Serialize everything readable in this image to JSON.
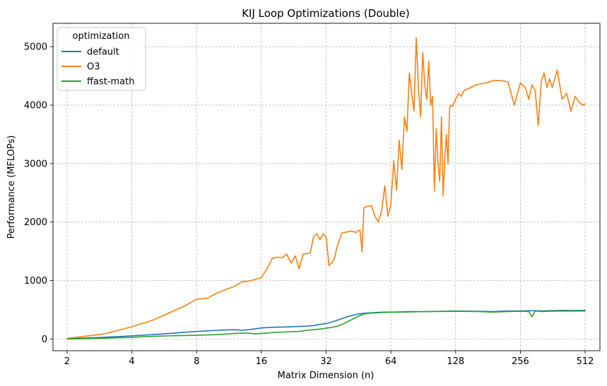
{
  "chart_data": {
    "type": "line",
    "title": "KIJ Loop Optimizations (Double)",
    "xlabel": "Matrix Dimension (n)",
    "ylabel": "Performance (MFLOPs)",
    "xscale": "log2",
    "xlim": [
      1.72,
      600
    ],
    "ylim": [
      -200,
      5400
    ],
    "xticks": [
      2,
      4,
      8,
      16,
      32,
      64,
      128,
      256,
      512
    ],
    "xtick_labels": [
      "2",
      "4",
      "8",
      "16",
      "32",
      "64",
      "128",
      "256",
      "512"
    ],
    "yticks": [
      0,
      1000,
      2000,
      3000,
      4000,
      5000
    ],
    "ytick_labels": [
      "0",
      "1000",
      "2000",
      "3000",
      "4000",
      "5000"
    ],
    "grid": true,
    "legend": {
      "title": "optimization",
      "placement": "top-left"
    },
    "series": [
      {
        "name": "default",
        "color": "#1f77b4",
        "x": [
          2,
          3,
          4,
          5,
          6,
          7,
          8,
          9,
          10,
          11,
          12,
          13,
          14,
          15,
          16,
          18,
          20,
          22,
          24,
          26,
          28,
          30,
          32,
          34,
          36,
          38,
          40,
          42,
          44,
          46,
          48,
          52,
          56,
          60,
          64,
          72,
          80,
          96,
          112,
          128,
          160,
          192,
          224,
          256,
          300,
          320,
          350,
          400,
          450,
          512
        ],
        "y": [
          5,
          30,
          55,
          75,
          95,
          115,
          130,
          140,
          150,
          155,
          160,
          150,
          160,
          175,
          190,
          200,
          205,
          210,
          215,
          220,
          230,
          250,
          265,
          290,
          320,
          350,
          380,
          400,
          420,
          430,
          440,
          450,
          455,
          460,
          460,
          465,
          470,
          470,
          475,
          478,
          475,
          470,
          480,
          480,
          485,
          480,
          485,
          490,
          488,
          490
        ]
      },
      {
        "name": "O3",
        "color": "#ff7f0e",
        "x": [
          2,
          3,
          4,
          5,
          6,
          7,
          8,
          9,
          10,
          11,
          12,
          13,
          14,
          15,
          16,
          17,
          18,
          19,
          20,
          21,
          22,
          23,
          24,
          25,
          26,
          27,
          28,
          29,
          30,
          31,
          32,
          33,
          34,
          35,
          36,
          38,
          40,
          42,
          44,
          45,
          46,
          47,
          48,
          50,
          52,
          54,
          56,
          58,
          60,
          62,
          64,
          66,
          68,
          70,
          72,
          74,
          76,
          78,
          80,
          82,
          84,
          86,
          88,
          90,
          92,
          94,
          96,
          98,
          100,
          102,
          104,
          106,
          108,
          110,
          112,
          114,
          116,
          118,
          120,
          122,
          124,
          126,
          128,
          132,
          136,
          140,
          150,
          160,
          176,
          192,
          208,
          224,
          240,
          256,
          270,
          280,
          290,
          300,
          310,
          320,
          330,
          340,
          350,
          360,
          380,
          400,
          420,
          440,
          460,
          480,
          500,
          512
        ],
        "y": [
          10,
          90,
          210,
          320,
          450,
          560,
          680,
          700,
          790,
          850,
          900,
          980,
          990,
          1020,
          1050,
          1200,
          1380,
          1400,
          1390,
          1450,
          1300,
          1420,
          1200,
          1450,
          1460,
          1470,
          1750,
          1800,
          1700,
          1800,
          1750,
          1260,
          1300,
          1380,
          1580,
          1820,
          1830,
          1850,
          1820,
          1850,
          1860,
          1490,
          2250,
          2270,
          2280,
          2100,
          2000,
          2200,
          2620,
          2100,
          2300,
          3050,
          2550,
          3400,
          2900,
          3800,
          3550,
          4550,
          4200,
          3900,
          5150,
          4300,
          3800,
          4900,
          4350,
          4100,
          4750,
          4000,
          4150,
          2530,
          3600,
          3000,
          2700,
          3800,
          2450,
          3100,
          3500,
          3000,
          3950,
          4000,
          3980,
          4050,
          4100,
          4200,
          4150,
          4250,
          4300,
          4350,
          4380,
          4420,
          4420,
          4400,
          4000,
          4380,
          4300,
          4100,
          4350,
          4250,
          3650,
          4400,
          4550,
          4300,
          4450,
          4300,
          4600,
          4100,
          4200,
          3900,
          4150,
          4050,
          4000,
          4020
        ]
      },
      {
        "name": "ffast-math",
        "color": "#2ca02c",
        "x": [
          2,
          3,
          4,
          5,
          6,
          7,
          8,
          9,
          10,
          11,
          12,
          13,
          14,
          15,
          16,
          18,
          20,
          22,
          24,
          26,
          28,
          30,
          32,
          34,
          36,
          38,
          40,
          42,
          44,
          46,
          48,
          52,
          56,
          60,
          64,
          72,
          80,
          96,
          112,
          128,
          160,
          192,
          224,
          256,
          280,
          290,
          300,
          320,
          350,
          400,
          450,
          512
        ],
        "y": [
          0,
          15,
          30,
          45,
          55,
          60,
          65,
          70,
          75,
          85,
          95,
          100,
          100,
          90,
          95,
          110,
          120,
          125,
          130,
          150,
          160,
          170,
          185,
          200,
          220,
          250,
          290,
          330,
          370,
          400,
          430,
          445,
          450,
          455,
          458,
          460,
          465,
          470,
          472,
          475,
          470,
          460,
          470,
          475,
          470,
          380,
          480,
          470,
          475,
          480,
          478,
          480
        ]
      }
    ]
  }
}
